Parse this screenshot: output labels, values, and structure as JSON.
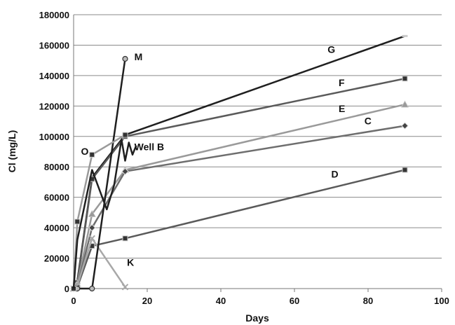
{
  "chart_data": {
    "type": "line",
    "xlabel": "Days",
    "ylabel": "Cl (mg/L)",
    "xlim": [
      0,
      100
    ],
    "ylim": [
      0,
      180000
    ],
    "xticks": [
      0,
      20,
      40,
      60,
      80,
      100
    ],
    "yticks": [
      0,
      20000,
      40000,
      60000,
      80000,
      100000,
      120000,
      140000,
      160000,
      180000
    ],
    "grid": "horizontal",
    "legend": "none",
    "series": [
      {
        "name": "G",
        "color": "#1f1f1f",
        "marker": "dash",
        "x": [
          0,
          1,
          5,
          14,
          90
        ],
        "y": [
          0,
          5000,
          73000,
          101000,
          166000
        ]
      },
      {
        "name": "F",
        "color": "#5a5a5a",
        "marker": "square",
        "x": [
          0,
          1,
          5,
          14,
          90
        ],
        "y": [
          0,
          4000,
          72000,
          100000,
          138000
        ]
      },
      {
        "name": "E",
        "color": "#9a9a9a",
        "marker": "triangle",
        "x": [
          0,
          1,
          5,
          14,
          90
        ],
        "y": [
          0,
          3000,
          49000,
          78000,
          121000
        ]
      },
      {
        "name": "C",
        "color": "#6e6e6e",
        "marker": "diamond",
        "x": [
          0,
          1,
          5,
          14,
          90
        ],
        "y": [
          0,
          2000,
          40000,
          77000,
          107000
        ]
      },
      {
        "name": "D",
        "color": "#5a5a5a",
        "marker": "square",
        "x": [
          0,
          1,
          5,
          14,
          90
        ],
        "y": [
          0,
          1000,
          28000,
          33000,
          78000
        ]
      },
      {
        "name": "K",
        "color": "#a8a8a8",
        "marker": "x",
        "x": [
          0,
          1,
          5,
          14
        ],
        "y": [
          0,
          2000,
          33000,
          1000
        ]
      },
      {
        "name": "M",
        "color": "#1f1f1f",
        "marker": "circle",
        "x": [
          0,
          1,
          5,
          14
        ],
        "y": [
          0,
          0,
          0,
          151000
        ]
      },
      {
        "name": "O",
        "color": "#9a9a9a",
        "marker": "square",
        "x": [
          0,
          1,
          5,
          14
        ],
        "y": [
          0,
          44000,
          88000,
          101000
        ]
      },
      {
        "name": "Well B",
        "color": "#1f1f1f",
        "marker": "none",
        "x": [
          0,
          1,
          5,
          9,
          11,
          13,
          14,
          15,
          16,
          17
        ],
        "y": [
          0,
          32000,
          78000,
          52000,
          68000,
          98000,
          84000,
          96000,
          88000,
          94000
        ]
      }
    ],
    "annotations": [
      {
        "text": "G",
        "x": 69,
        "y": 155000
      },
      {
        "text": "F",
        "x": 72,
        "y": 133000
      },
      {
        "text": "E",
        "x": 72,
        "y": 116000
      },
      {
        "text": "C",
        "x": 79,
        "y": 108000
      },
      {
        "text": "D",
        "x": 70,
        "y": 73000
      },
      {
        "text": "K",
        "x": 14.5,
        "y": 15000
      },
      {
        "text": "M",
        "x": 16.5,
        "y": 150000
      },
      {
        "text": "O",
        "x": 2,
        "y": 88000
      },
      {
        "text": "Well B",
        "x": 16.5,
        "y": 91000
      }
    ]
  }
}
